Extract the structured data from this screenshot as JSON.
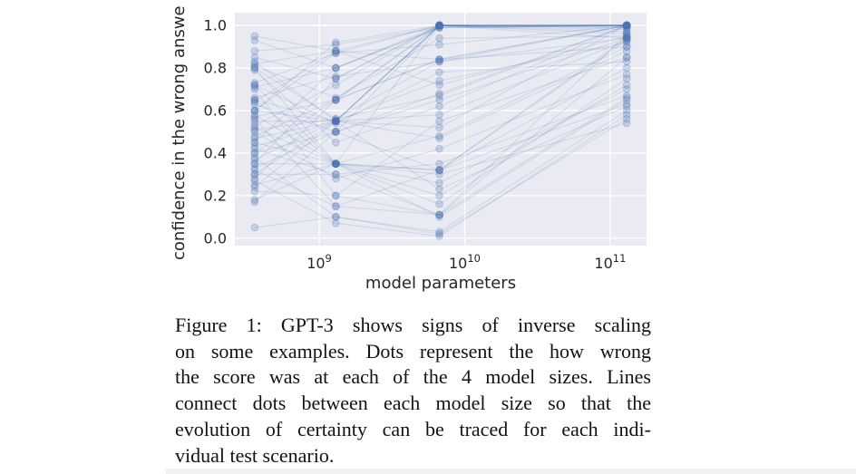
{
  "page": {
    "background": "#ffffff",
    "bottom_strip_color": "#f1f1f2"
  },
  "figure_caption": {
    "lines": [
      "Figure 1: GPT-3 shows signs of inverse scaling",
      "on some examples. Dots represent the how wrong",
      "the score was at each of the 4 model sizes. Lines",
      "connect dots between each model size so that the",
      "evolution of certainty can be traced for each indi-",
      "vidual test scenario."
    ]
  },
  "chart_data": {
    "type": "scatter",
    "subtype": "dots-connected-by-lines-across-model-sizes",
    "title": "",
    "xlabel": "model parameters",
    "ylabel": "confidence in the wrong answe",
    "x_scale": "log",
    "grid": true,
    "legend": "none",
    "x_tick_labels": [
      {
        "base": "10",
        "exp": "9"
      },
      {
        "base": "10",
        "exp": "10"
      },
      {
        "base": "10",
        "exp": "11"
      }
    ],
    "x_tick_values": [
      1000000000,
      10000000000,
      100000000000
    ],
    "y_tick_labels": [
      "0.0",
      "0.2",
      "0.4",
      "0.6",
      "0.8",
      "1.0"
    ],
    "y_tick_values": [
      0,
      0.2,
      0.4,
      0.6,
      0.8,
      1.0
    ],
    "xlim_log10": [
      8.42,
      11.25
    ],
    "ylim": [
      -0.035,
      1.06
    ],
    "model_sizes": [
      360000000,
      1300000000,
      6700000000,
      130000000000
    ],
    "scenarios": [
      [
        0.95,
        0.88,
        1.0,
        1.0
      ],
      [
        0.93,
        0.8,
        1.0,
        1.0
      ],
      [
        0.88,
        0.91,
        0.99,
        1.0
      ],
      [
        0.85,
        0.75,
        1.0,
        0.99
      ],
      [
        0.83,
        0.55,
        1.0,
        1.0
      ],
      [
        0.82,
        0.88,
        0.84,
        1.0
      ],
      [
        0.81,
        0.66,
        0.94,
        0.95
      ],
      [
        0.8,
        0.35,
        1.0,
        1.0
      ],
      [
        0.8,
        0.56,
        0.83,
        0.94
      ],
      [
        0.79,
        0.45,
        0.62,
        1.0
      ],
      [
        0.73,
        0.87,
        1.0,
        0.96
      ],
      [
        0.72,
        0.54,
        0.78,
        0.83
      ],
      [
        0.72,
        0.35,
        0.32,
        0.93
      ],
      [
        0.71,
        0.8,
        0.99,
        1.0
      ],
      [
        0.7,
        0.2,
        0.55,
        0.85
      ],
      [
        0.66,
        0.76,
        0.83,
        1.0
      ],
      [
        0.65,
        0.55,
        1.0,
        0.94
      ],
      [
        0.65,
        0.35,
        0.16,
        0.75
      ],
      [
        0.64,
        0.88,
        0.72,
        0.95
      ],
      [
        0.63,
        0.5,
        0.32,
        0.63
      ],
      [
        0.6,
        0.92,
        1.0,
        1.0
      ],
      [
        0.6,
        0.55,
        0.47,
        0.88
      ],
      [
        0.58,
        0.35,
        0.26,
        0.7
      ],
      [
        0.57,
        0.65,
        1.0,
        1.0
      ],
      [
        0.56,
        0.15,
        0.32,
        0.94
      ],
      [
        0.55,
        0.55,
        0.74,
        0.92
      ],
      [
        0.53,
        0.72,
        1.0,
        0.97
      ],
      [
        0.52,
        0.35,
        0.1,
        0.65
      ],
      [
        0.51,
        0.56,
        0.67,
        1.0
      ],
      [
        0.5,
        0.28,
        0.42,
        0.77
      ],
      [
        0.48,
        0.65,
        1.0,
        1.0
      ],
      [
        0.47,
        0.55,
        0.58,
        0.93
      ],
      [
        0.45,
        0.35,
        0.32,
        0.8
      ],
      [
        0.45,
        0.8,
        0.99,
        1.0
      ],
      [
        0.43,
        0.55,
        0.23,
        0.62
      ],
      [
        0.42,
        0.3,
        0.11,
        0.96
      ],
      [
        0.4,
        0.5,
        1.0,
        1.0
      ],
      [
        0.4,
        0.65,
        0.84,
        0.9
      ],
      [
        0.38,
        0.1,
        0.03,
        0.6
      ],
      [
        0.37,
        0.55,
        0.52,
        1.0
      ],
      [
        0.35,
        0.75,
        1.0,
        0.98
      ],
      [
        0.35,
        0.35,
        0.2,
        0.72
      ],
      [
        0.33,
        0.5,
        0.65,
        0.94
      ],
      [
        0.32,
        0.15,
        0.11,
        0.85
      ],
      [
        0.3,
        0.55,
        1.0,
        1.0
      ],
      [
        0.3,
        0.3,
        0.35,
        0.67
      ],
      [
        0.28,
        0.65,
        0.84,
        1.0
      ],
      [
        0.27,
        0.07,
        0.01,
        0.58
      ],
      [
        0.25,
        0.35,
        0.48,
        0.9
      ],
      [
        0.24,
        0.55,
        1.0,
        0.99
      ],
      [
        0.22,
        0.2,
        0.11,
        0.66
      ],
      [
        0.18,
        0.35,
        0.3,
        0.54
      ],
      [
        0.17,
        0.5,
        0.68,
        1.0
      ],
      [
        0.05,
        0.1,
        0.02,
        0.56
      ],
      [
        0.6,
        0.87,
        0.91,
        1.0
      ]
    ],
    "style": {
      "plot_bg": "#eaebf2",
      "grid_color": "#ffffff",
      "dot_color": "#4c72b0",
      "dot_opacity": 0.22,
      "line_color": "#4c72b0",
      "line_opacity": 0.15,
      "tick_color": "#262626"
    }
  }
}
